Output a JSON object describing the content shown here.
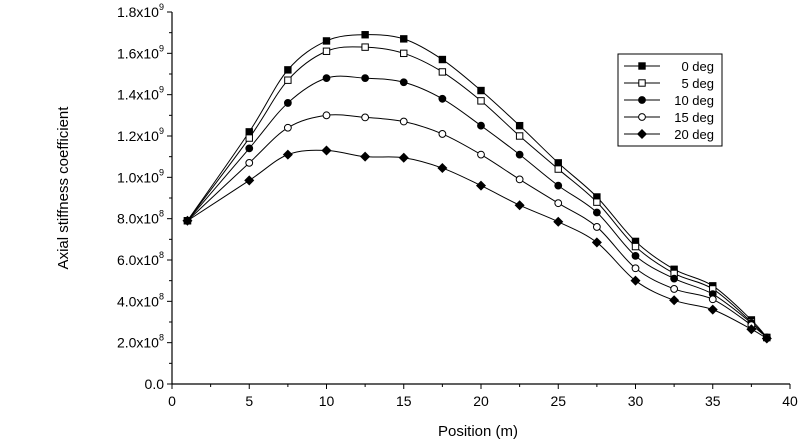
{
  "chart_data": {
    "type": "line",
    "title": "",
    "xlabel": "Position (m)",
    "ylabel": "Axial stiffness coefficient",
    "xlim": [
      0,
      40
    ],
    "ylim": [
      0,
      1800000000
    ],
    "grid": false,
    "legend_position": "top-right",
    "x_ticks": [
      {
        "value": 0,
        "label": "0"
      },
      {
        "value": 5,
        "label": "5"
      },
      {
        "value": 10,
        "label": "10"
      },
      {
        "value": 15,
        "label": "15"
      },
      {
        "value": 20,
        "label": "20"
      },
      {
        "value": 25,
        "label": "25"
      },
      {
        "value": 30,
        "label": "30"
      },
      {
        "value": 35,
        "label": "35"
      },
      {
        "value": 40,
        "label": "40"
      }
    ],
    "y_ticks": [
      {
        "value": 0,
        "mantissa": "0.0",
        "exp": ""
      },
      {
        "value": 200000000,
        "mantissa": "2.0x10",
        "exp": "8"
      },
      {
        "value": 400000000,
        "mantissa": "4.0x10",
        "exp": "8"
      },
      {
        "value": 600000000,
        "mantissa": "6.0x10",
        "exp": "8"
      },
      {
        "value": 800000000,
        "mantissa": "8.0x10",
        "exp": "8"
      },
      {
        "value": 1000000000,
        "mantissa": "1.0x10",
        "exp": "9"
      },
      {
        "value": 1200000000,
        "mantissa": "1.2x10",
        "exp": "9"
      },
      {
        "value": 1400000000,
        "mantissa": "1.4x10",
        "exp": "9"
      },
      {
        "value": 1600000000,
        "mantissa": "1.6x10",
        "exp": "9"
      },
      {
        "value": 1800000000,
        "mantissa": "1.8x10",
        "exp": "9"
      }
    ],
    "x": [
      1,
      5,
      7.5,
      10,
      12.5,
      15,
      17.5,
      20,
      22.5,
      25,
      27.5,
      30,
      32.5,
      35,
      37.5,
      38.5
    ],
    "series": [
      {
        "name": "0 deg",
        "marker": "filled-square",
        "values": [
          790000000,
          1220000000,
          1520000000,
          1660000000,
          1690000000,
          1670000000,
          1570000000,
          1420000000,
          1250000000,
          1070000000,
          905000000,
          690000000,
          555000000,
          475000000,
          310000000,
          225000000
        ]
      },
      {
        "name": "5 deg",
        "marker": "open-square",
        "values": [
          790000000,
          1190000000,
          1470000000,
          1610000000,
          1630000000,
          1600000000,
          1510000000,
          1370000000,
          1200000000,
          1040000000,
          880000000,
          665000000,
          535000000,
          460000000,
          300000000,
          225000000
        ]
      },
      {
        "name": "10 deg",
        "marker": "filled-circle",
        "values": [
          790000000,
          1140000000,
          1360000000,
          1480000000,
          1480000000,
          1460000000,
          1380000000,
          1250000000,
          1110000000,
          960000000,
          830000000,
          620000000,
          510000000,
          435000000,
          295000000,
          225000000
        ]
      },
      {
        "name": "15 deg",
        "marker": "open-circle",
        "values": [
          790000000,
          1070000000,
          1240000000,
          1300000000,
          1290000000,
          1270000000,
          1210000000,
          1110000000,
          990000000,
          875000000,
          760000000,
          560000000,
          460000000,
          410000000,
          285000000,
          225000000
        ]
      },
      {
        "name": "20 deg",
        "marker": "filled-diamond",
        "values": [
          790000000,
          985000000,
          1110000000,
          1130000000,
          1100000000,
          1095000000,
          1045000000,
          960000000,
          865000000,
          785000000,
          685000000,
          500000000,
          405000000,
          360000000,
          265000000,
          220000000
        ]
      }
    ]
  }
}
